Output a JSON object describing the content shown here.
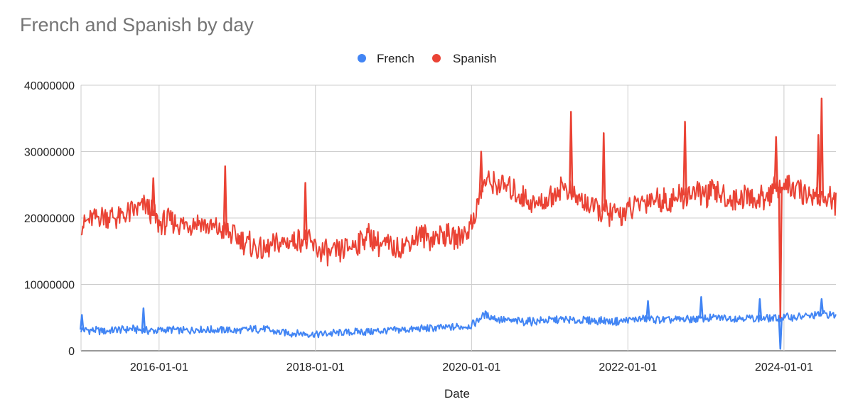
{
  "chart_data": {
    "type": "line",
    "title": "French and Spanish by day",
    "xlabel": "Date",
    "ylabel": "",
    "legend_position": "top-center",
    "grid": true,
    "xlim": [
      "2015-01-01",
      "2024-08-31"
    ],
    "ylim": [
      0,
      40000000
    ],
    "x_ticks": [
      "2016-01-01",
      "2018-01-01",
      "2020-01-01",
      "2022-01-01",
      "2024-01-01"
    ],
    "y_ticks": [
      {
        "value": 0,
        "label": "0"
      },
      {
        "value": 10000000,
        "label": "10000000"
      },
      {
        "value": 20000000,
        "label": "20000000"
      },
      {
        "value": 30000000,
        "label": "30000000"
      },
      {
        "value": 40000000,
        "label": "40000000"
      }
    ],
    "x": [
      "2015-01-01",
      "2015-03-01",
      "2015-05-01",
      "2015-07-01",
      "2015-09-01",
      "2015-11-01",
      "2016-01-01",
      "2016-03-01",
      "2016-05-01",
      "2016-07-01",
      "2016-09-01",
      "2016-11-01",
      "2017-01-01",
      "2017-03-01",
      "2017-05-01",
      "2017-07-01",
      "2017-09-01",
      "2017-11-01",
      "2018-01-01",
      "2018-03-01",
      "2018-05-01",
      "2018-07-01",
      "2018-09-01",
      "2018-11-01",
      "2019-01-01",
      "2019-03-01",
      "2019-05-01",
      "2019-07-01",
      "2019-09-01",
      "2019-11-01",
      "2020-01-01",
      "2020-03-01",
      "2020-05-01",
      "2020-07-01",
      "2020-09-01",
      "2020-11-01",
      "2021-01-01",
      "2021-03-01",
      "2021-05-01",
      "2021-07-01",
      "2021-09-01",
      "2021-11-01",
      "2022-01-01",
      "2022-03-01",
      "2022-05-01",
      "2022-07-01",
      "2022-09-01",
      "2022-11-01",
      "2023-01-01",
      "2023-03-01",
      "2023-05-01",
      "2023-07-01",
      "2023-09-01",
      "2023-11-01",
      "2024-01-01",
      "2024-03-01",
      "2024-05-01",
      "2024-07-01",
      "2024-08-31"
    ],
    "series": [
      {
        "name": "French",
        "color": "#4285f4",
        "values": [
          3200000,
          3100000,
          3000000,
          3200000,
          3300000,
          3000000,
          3100000,
          3200000,
          3000000,
          3300000,
          3100000,
          3200000,
          3000000,
          3200000,
          3300000,
          2800000,
          2700000,
          2600000,
          2500000,
          2600000,
          2700000,
          2800000,
          2900000,
          3000000,
          3100000,
          3200000,
          3300000,
          3400000,
          3500000,
          3600000,
          3800000,
          5500000,
          4800000,
          4500000,
          4400000,
          4500000,
          4600000,
          4700000,
          4500000,
          4600000,
          4500000,
          4400000,
          4600000,
          4800000,
          4700000,
          4600000,
          4700000,
          4800000,
          4900000,
          5000000,
          4900000,
          5000000,
          4800000,
          4900000,
          5000000,
          5100000,
          5200000,
          5600000,
          5300000
        ],
        "spikes": [
          {
            "x": "2015-01-05",
            "value": 5400000
          },
          {
            "x": "2015-10-20",
            "value": 6400000
          },
          {
            "x": "2022-04-05",
            "value": 7500000
          },
          {
            "x": "2022-12-10",
            "value": 8100000
          },
          {
            "x": "2023-09-10",
            "value": 7800000
          },
          {
            "x": "2023-12-15",
            "value": 300000
          },
          {
            "x": "2024-06-25",
            "value": 7800000
          }
        ]
      },
      {
        "name": "Spanish",
        "color": "#ea4335",
        "values": [
          19000000,
          20000000,
          20500000,
          20000000,
          21000000,
          22000000,
          19000000,
          19500000,
          19000000,
          19500000,
          18500000,
          18000000,
          17000000,
          16000000,
          15000000,
          16000000,
          16500000,
          17000000,
          15500000,
          14500000,
          15000000,
          16000000,
          17500000,
          16000000,
          15500000,
          16000000,
          17500000,
          17000000,
          17500000,
          17000000,
          19000000,
          25500000,
          25000000,
          24500000,
          23000000,
          22000000,
          23000000,
          25000000,
          23000000,
          22000000,
          21000000,
          20500000,
          21000000,
          22500000,
          23000000,
          22500000,
          23000000,
          24000000,
          23500000,
          24000000,
          22500000,
          23500000,
          22500000,
          24000000,
          25000000,
          24000000,
          23500000,
          23000000,
          22500000
        ],
        "spikes": [
          {
            "x": "2015-12-05",
            "value": 26000000
          },
          {
            "x": "2016-11-05",
            "value": 27800000
          },
          {
            "x": "2017-11-15",
            "value": 25300000
          },
          {
            "x": "2020-02-15",
            "value": 30000000
          },
          {
            "x": "2021-04-10",
            "value": 36000000
          },
          {
            "x": "2021-09-10",
            "value": 32800000
          },
          {
            "x": "2022-09-25",
            "value": 34500000
          },
          {
            "x": "2023-11-25",
            "value": 32200000
          },
          {
            "x": "2023-12-15",
            "value": 5000000
          },
          {
            "x": "2024-06-10",
            "value": 32500000
          },
          {
            "x": "2024-06-25",
            "value": 38000000
          }
        ]
      }
    ]
  }
}
